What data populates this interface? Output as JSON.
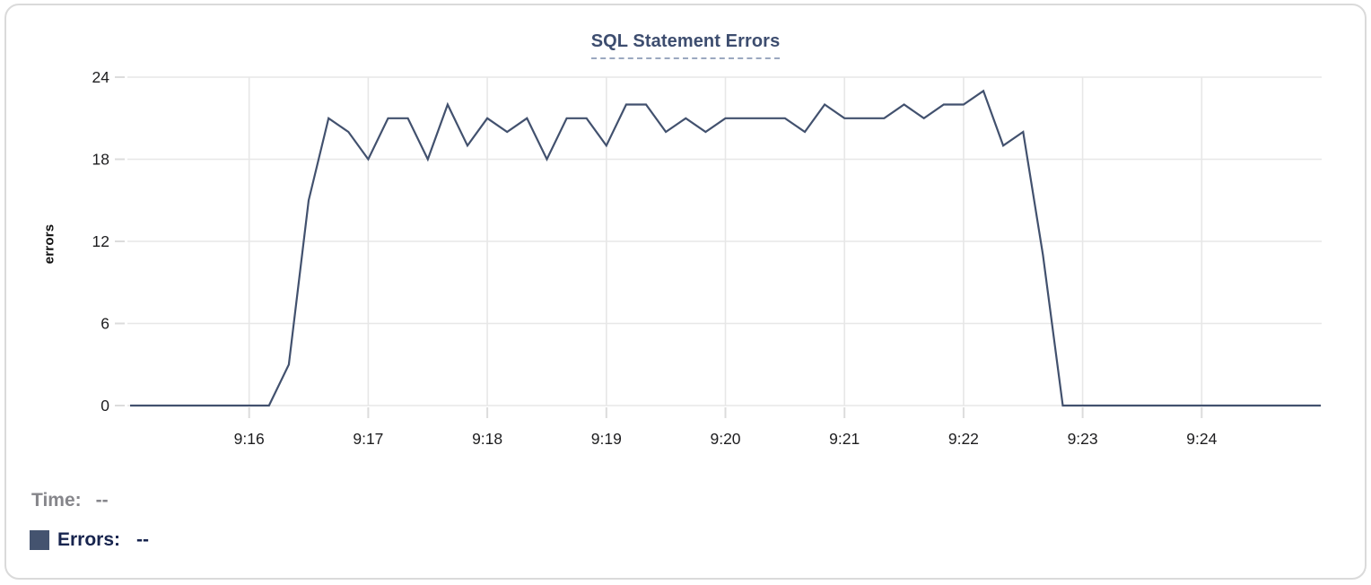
{
  "chart_data": {
    "type": "line",
    "title": "SQL Statement Errors",
    "xlabel": "",
    "ylabel": "errors",
    "ylim": [
      0,
      24
    ],
    "y_ticks": [
      0,
      6,
      12,
      18,
      24
    ],
    "x_tick_labels": [
      "9:16",
      "9:17",
      "9:18",
      "9:19",
      "9:20",
      "9:21",
      "9:22",
      "9:23",
      "9:24"
    ],
    "grid": true,
    "grid_color": "#e7e7e7",
    "tick_color": "#dcdcdc",
    "tick_label_color": "#1d1d1f",
    "sample_interval_seconds": 10,
    "times": [
      "9:15:00",
      "9:15:10",
      "9:15:20",
      "9:15:30",
      "9:15:40",
      "9:15:50",
      "9:16:00",
      "9:16:10",
      "9:16:20",
      "9:16:30",
      "9:16:40",
      "9:16:50",
      "9:17:00",
      "9:17:10",
      "9:17:20",
      "9:17:30",
      "9:17:40",
      "9:17:50",
      "9:18:00",
      "9:18:10",
      "9:18:20",
      "9:18:30",
      "9:18:40",
      "9:18:50",
      "9:19:00",
      "9:19:10",
      "9:19:20",
      "9:19:30",
      "9:19:40",
      "9:19:50",
      "9:20:00",
      "9:20:10",
      "9:20:20",
      "9:20:30",
      "9:20:40",
      "9:20:50",
      "9:21:00",
      "9:21:10",
      "9:21:20",
      "9:21:30",
      "9:21:40",
      "9:21:50",
      "9:22:00",
      "9:22:10",
      "9:22:20",
      "9:22:30",
      "9:22:40",
      "9:22:50",
      "9:23:00",
      "9:23:10",
      "9:23:20",
      "9:23:30",
      "9:23:40",
      "9:23:50",
      "9:24:00",
      "9:24:10",
      "9:24:20",
      "9:24:30",
      "9:24:40",
      "9:24:50",
      "9:25:00"
    ],
    "series": [
      {
        "name": "Errors",
        "color": "#42516e",
        "values": [
          0,
          0,
          0,
          0,
          0,
          0,
          0,
          0,
          3,
          15,
          21,
          20,
          18,
          21,
          21,
          18,
          22,
          19,
          21,
          20,
          21,
          18,
          21,
          21,
          19,
          22,
          22,
          20,
          21,
          20,
          21,
          21,
          21,
          21,
          20,
          22,
          21,
          21,
          21,
          22,
          21,
          22,
          22,
          23,
          19,
          20,
          11,
          0,
          0,
          0,
          0,
          0,
          0,
          0,
          0,
          0,
          0,
          0,
          0,
          0,
          0
        ]
      }
    ],
    "legend_position": "bottom-left"
  },
  "tooltip_readout": {
    "time_label": "Time:",
    "time_value": "--",
    "errors_label": "Errors:",
    "errors_value": "--",
    "swatch_color": "#44536f"
  },
  "colors": {
    "title": "#3d4d6f",
    "title_underline": "#9ba8c0",
    "line": "#42516e",
    "card_border": "#dadada",
    "time_label": "#86868b",
    "errors_label": "#17244e"
  }
}
